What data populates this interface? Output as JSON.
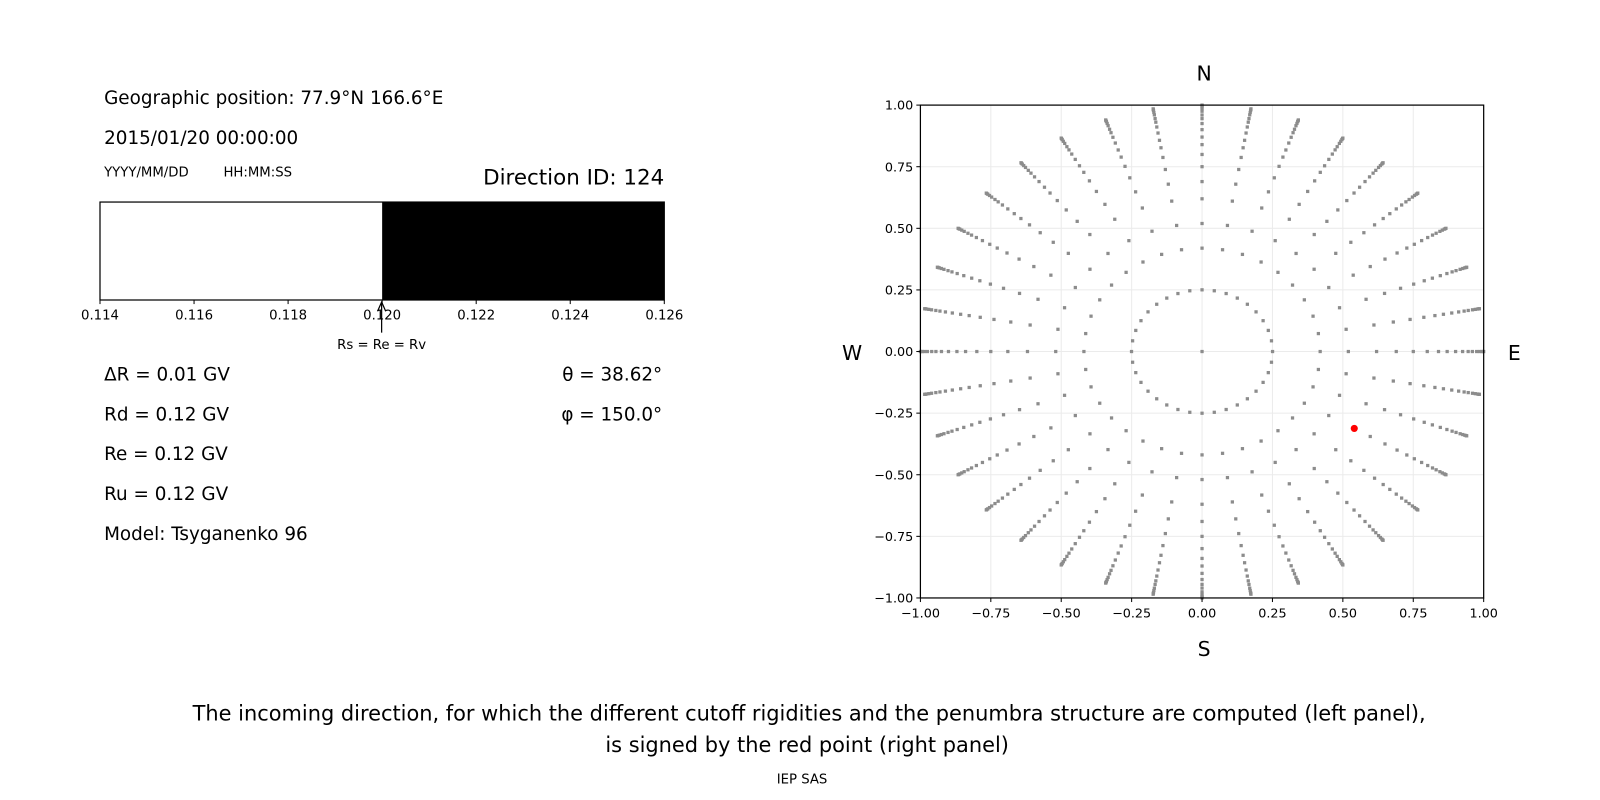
{
  "left_panel": {
    "geo_position": "Geographic position: 77.9°N 166.6°E",
    "datetime": "2015/01/20 00:00:00",
    "date_format": "YYYY/MM/DD",
    "time_format": "HH:MM:SS",
    "direction_id": "Direction ID: 124",
    "delta_r": "ΔR = 0.01 GV",
    "rd": "Rd = 0.12 GV",
    "re": "Re = 0.12 GV",
    "ru": "Ru = 0.12 GV",
    "model": "Model: Tsyganenko 96",
    "theta": "θ = 38.62°",
    "phi": "φ = 150.0°"
  },
  "chart_data": [
    {
      "type": "bar",
      "xlim": [
        0.114,
        0.126
      ],
      "x_ticks": [
        "0.114",
        "0.116",
        "0.118",
        "0.120",
        "0.122",
        "0.124",
        "0.126"
      ],
      "segments": [
        {
          "from": 0.114,
          "to": 0.12,
          "color": "#ffffff"
        },
        {
          "from": 0.12,
          "to": 0.126,
          "color": "#000000"
        }
      ],
      "annotation": {
        "x": 0.12,
        "text": "Rs = Re = Rv"
      }
    },
    {
      "type": "scatter",
      "xlim": [
        -1,
        1
      ],
      "ylim": [
        -1,
        1
      ],
      "x_ticks": [
        "−1.00",
        "−0.75",
        "−0.50",
        "−0.25",
        "0.00",
        "0.25",
        "0.50",
        "0.75",
        "1.00"
      ],
      "y_ticks": [
        "1.00",
        "0.75",
        "0.50",
        "0.25",
        "0.00",
        "−0.25",
        "−0.50",
        "−0.75",
        "−1.00"
      ],
      "grid": true,
      "compass": {
        "north": "N",
        "south": "S",
        "west": "W",
        "east": "E"
      },
      "point_color": "#8c8c8c",
      "highlight_color": "#ff0000",
      "zenith_rings_deg": [
        0,
        14.5,
        24.8,
        31.3,
        38.3,
        43.6,
        48.6,
        53.1,
        57.1,
        60.5,
        64.2,
        67.7,
        70.9,
        73.7,
        77.2,
        80.1,
        83.2,
        86,
        90
      ],
      "azimuth_step_deg": 10,
      "highlight": {
        "theta": 38.62,
        "phi": 150.0
      }
    }
  ],
  "caption": {
    "line1": "The incoming direction, for which the different cutoff rigidities and the penumbra structure are computed (left panel),",
    "line2": "is signed by the red point (right panel)"
  },
  "credit": "IEP SAS"
}
